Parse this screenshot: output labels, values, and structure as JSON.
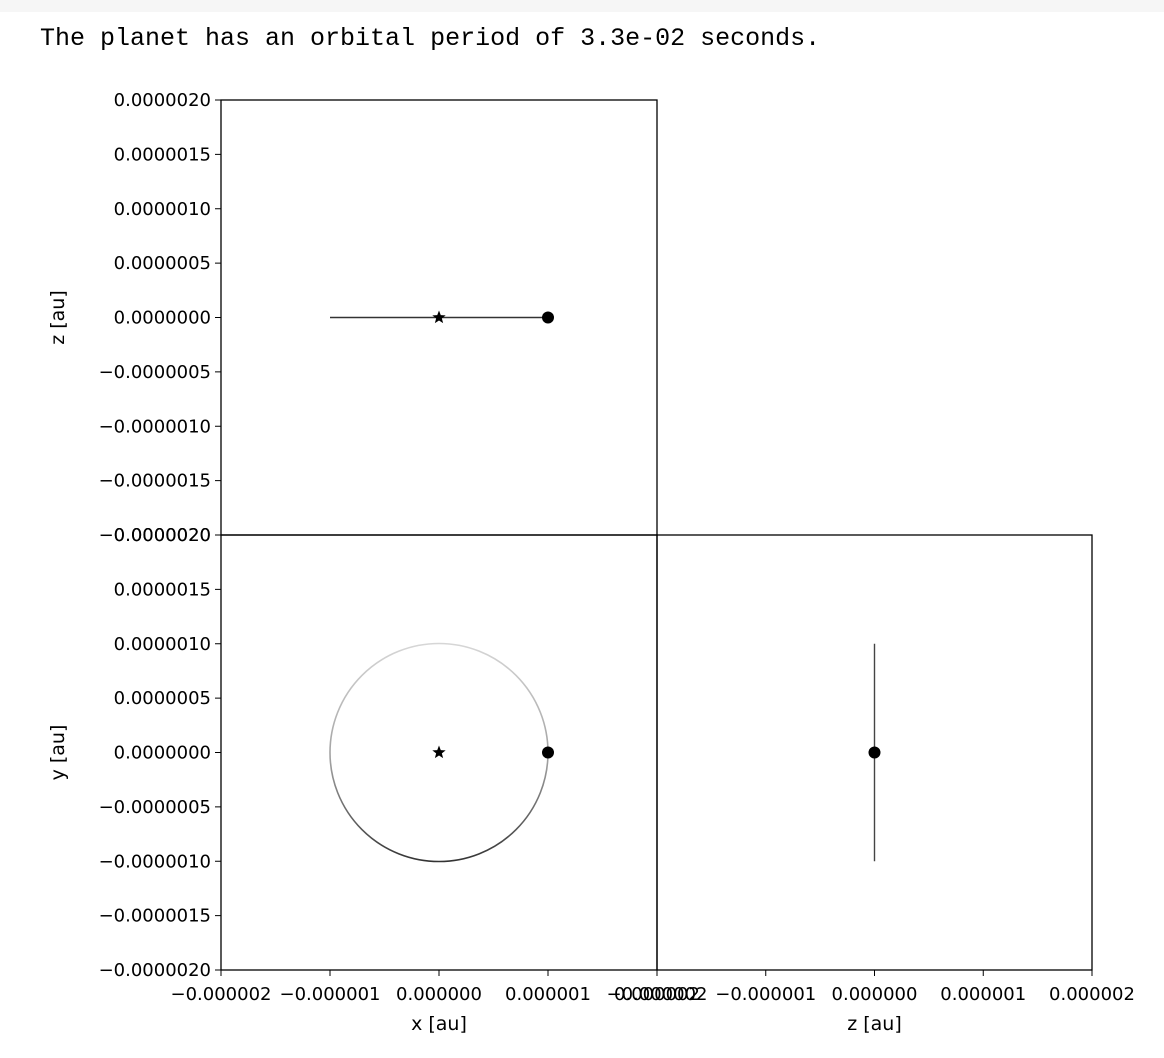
{
  "output": {
    "text": "The planet has an orbital period of 3.3e-02 seconds."
  },
  "chart_data": [
    {
      "type": "line",
      "panel": "top-left",
      "xlabel": "",
      "ylabel": "z [au]",
      "xlim": [
        -2e-06,
        2e-06
      ],
      "ylim": [
        -2e-06,
        2e-06
      ],
      "yticks": [
        2e-06,
        1.5e-06,
        1e-06,
        5e-07,
        0.0,
        -5e-07,
        -1e-06,
        -1.5e-06,
        -2e-06
      ],
      "ytick_labels": [
        "0.0000020",
        "0.0000015",
        "0.0000010",
        "0.0000005",
        "0.0000000",
        "−0.0000005",
        "−0.0000010",
        "−0.0000015",
        "−0.0000020"
      ],
      "orbit": {
        "x_from": -1e-06,
        "x_to": 1e-06,
        "y": 0.0
      },
      "star": {
        "x": 0.0,
        "y": 0.0
      },
      "planet": {
        "x": 1e-06,
        "y": 0.0
      }
    },
    {
      "type": "line",
      "panel": "bottom-left",
      "xlabel": "x [au]",
      "ylabel": "y [au]",
      "xlim": [
        -2e-06,
        2e-06
      ],
      "ylim": [
        -2e-06,
        2e-06
      ],
      "xticks": [
        -2e-06,
        -1e-06,
        0.0,
        1e-06,
        2e-06
      ],
      "xtick_labels": [
        "−0.000002",
        "−0.000001",
        "0.000000",
        "0.000001",
        "0.000002"
      ],
      "yticks": [
        2e-06,
        1.5e-06,
        1e-06,
        5e-07,
        0.0,
        -5e-07,
        -1e-06,
        -1.5e-06,
        -2e-06
      ],
      "ytick_labels": [
        "0.0000020",
        "0.0000015",
        "0.0000010",
        "0.0000005",
        "0.0000000",
        "−0.0000005",
        "−0.0000010",
        "−0.0000015",
        "−0.0000020"
      ],
      "orbit": {
        "center_x": 0.0,
        "center_y": 0.0,
        "radius": 1e-06
      },
      "star": {
        "x": 0.0,
        "y": 0.0
      },
      "planet": {
        "x": 1e-06,
        "y": 0.0
      }
    },
    {
      "type": "line",
      "panel": "bottom-right",
      "xlabel": "z [au]",
      "ylabel": "",
      "xlim": [
        -2e-06,
        2e-06
      ],
      "ylim": [
        -2e-06,
        2e-06
      ],
      "xticks": [
        -2e-06,
        -1e-06,
        0.0,
        1e-06,
        2e-06
      ],
      "xtick_labels": [
        "−0.000002",
        "−0.000001",
        "0.000000",
        "0.000001",
        "0.000002"
      ],
      "orbit": {
        "x": 0.0,
        "y_from": -1e-06,
        "y_to": 1e-06
      },
      "planet": {
        "x": 0.0,
        "y": 0.0
      }
    }
  ]
}
